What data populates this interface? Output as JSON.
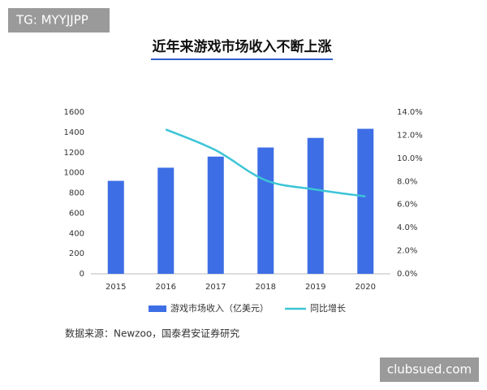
{
  "chart_data": {
    "type": "bar-line",
    "title": "近年来游戏市场收入不断上涨",
    "categories": [
      "2015",
      "2016",
      "2017",
      "2018",
      "2019",
      "2020"
    ],
    "series": [
      {
        "name": "游戏市场收入（亿美元）",
        "type": "bar",
        "color": "#3d6ee6",
        "values": [
          920,
          1050,
          1160,
          1250,
          1345,
          1435
        ]
      },
      {
        "name": "同比增长",
        "type": "line",
        "axis": "y2",
        "color": "#3cc5d6",
        "values": [
          null,
          12.5,
          10.7,
          8.1,
          7.3,
          6.7
        ]
      }
    ],
    "ylim": [
      0,
      1600
    ],
    "yticks": [
      0,
      200,
      400,
      600,
      800,
      1000,
      1200,
      1400,
      1600
    ],
    "y2lim": [
      0,
      14
    ],
    "y2ticks": [
      {
        "value": 0,
        "label": "0.0%"
      },
      {
        "value": 2,
        "label": "2.0%"
      },
      {
        "value": 4,
        "label": "4.0%"
      },
      {
        "value": 6,
        "label": "6.0%"
      },
      {
        "value": 8,
        "label": "8.0%"
      },
      {
        "value": 10,
        "label": "10.0%"
      },
      {
        "value": 12,
        "label": "12.0%"
      },
      {
        "value": 14,
        "label": "14.0%"
      }
    ],
    "grid": false,
    "legend": "bottom",
    "source": "数据来源：Newzoo，国泰君安证券研究"
  },
  "watermarks": {
    "top_left": "TG: MYYJJPP",
    "bottom_right": "clubsued.com"
  }
}
